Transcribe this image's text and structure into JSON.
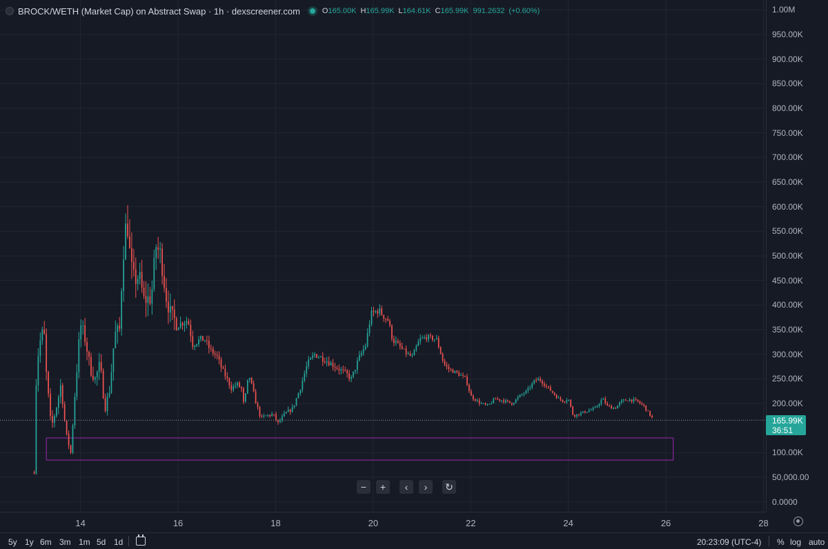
{
  "header": {
    "title": "BROCK/WETH (Market Cap) on Abstract Swap · 1h · dexscreener.com",
    "ohlc": [
      {
        "key": "O",
        "value": "165.00K"
      },
      {
        "key": "H",
        "value": "165.99K"
      },
      {
        "key": "L",
        "value": "164.61K"
      },
      {
        "key": "C",
        "value": "165.99K"
      }
    ],
    "volume": "991.2632",
    "change": "(+0.60%)"
  },
  "price_tag": {
    "price": "165.99K",
    "countdown": "36:51"
  },
  "nav_controls": [
    "−",
    "+",
    "‹",
    "›",
    "↻"
  ],
  "bottom_bar": {
    "ranges": [
      "5y",
      "1y",
      "6m",
      "3m",
      "1m",
      "5d",
      "1d"
    ],
    "clock": "20:23:09 (UTC-4)",
    "options": [
      "%",
      "log",
      "auto"
    ]
  },
  "colors": {
    "background": "#161a25",
    "up": "#26a69a",
    "down": "#ef5350",
    "zone": "#9c27b0",
    "grid": "#232632"
  },
  "chart_data": {
    "type": "candlestick",
    "title": "BROCK/WETH (Market Cap) on Abstract Swap · 1h · dexscreener.com",
    "x_unit": "day of month",
    "y_unit": "market cap (USD)",
    "xlim": [
      12.35,
      28.05
    ],
    "ylim": [
      -20000,
      1020000
    ],
    "x_ticks": [
      {
        "x": 14,
        "label": "14"
      },
      {
        "x": 16,
        "label": "16"
      },
      {
        "x": 18,
        "label": "18"
      },
      {
        "x": 20,
        "label": "20"
      },
      {
        "x": 22,
        "label": "22"
      },
      {
        "x": 24,
        "label": "24"
      },
      {
        "x": 26,
        "label": "26"
      },
      {
        "x": 28,
        "label": "28"
      }
    ],
    "y_ticks": [
      {
        "y": 1000000,
        "label": "1.00M"
      },
      {
        "y": 950000,
        "label": "950.00K"
      },
      {
        "y": 900000,
        "label": "900.00K"
      },
      {
        "y": 850000,
        "label": "850.00K"
      },
      {
        "y": 800000,
        "label": "800.00K"
      },
      {
        "y": 750000,
        "label": "750.00K"
      },
      {
        "y": 700000,
        "label": "700.00K"
      },
      {
        "y": 650000,
        "label": "650.00K"
      },
      {
        "y": 600000,
        "label": "600.00K"
      },
      {
        "y": 550000,
        "label": "550.00K"
      },
      {
        "y": 500000,
        "label": "500.00K"
      },
      {
        "y": 450000,
        "label": "450.00K"
      },
      {
        "y": 400000,
        "label": "400.00K"
      },
      {
        "y": 350000,
        "label": "350.00K"
      },
      {
        "y": 300000,
        "label": "300.00K"
      },
      {
        "y": 250000,
        "label": "250.00K"
      },
      {
        "y": 200000,
        "label": "200.00K"
      },
      {
        "y": 100000,
        "label": "100.00K"
      },
      {
        "y": 50000,
        "label": "50,000.00"
      },
      {
        "y": 0,
        "label": "0.0000"
      }
    ],
    "grid": true,
    "last_price": 165990,
    "zone": {
      "x0": 13.3,
      "x1": 26.15,
      "y0": 85000,
      "y1": 130000
    },
    "close_path": [
      [
        13.05,
        60000
      ],
      [
        13.1,
        280000
      ],
      [
        13.18,
        330000
      ],
      [
        13.25,
        350000
      ],
      [
        13.3,
        260000
      ],
      [
        13.4,
        150000
      ],
      [
        13.5,
        190000
      ],
      [
        13.6,
        240000
      ],
      [
        13.7,
        140000
      ],
      [
        13.8,
        100000
      ],
      [
        13.9,
        240000
      ],
      [
        14.0,
        360000
      ],
      [
        14.1,
        330000
      ],
      [
        14.2,
        270000
      ],
      [
        14.3,
        250000
      ],
      [
        14.4,
        280000
      ],
      [
        14.5,
        190000
      ],
      [
        14.6,
        230000
      ],
      [
        14.7,
        340000
      ],
      [
        14.8,
        350000
      ],
      [
        14.87,
        500000
      ],
      [
        14.95,
        580000
      ],
      [
        15.03,
        480000
      ],
      [
        15.1,
        450000
      ],
      [
        15.2,
        460000
      ],
      [
        15.3,
        410000
      ],
      [
        15.45,
        415000
      ],
      [
        15.55,
        520000
      ],
      [
        15.65,
        500000
      ],
      [
        15.75,
        420000
      ],
      [
        15.85,
        380000
      ],
      [
        16.0,
        360000
      ],
      [
        16.1,
        365000
      ],
      [
        16.2,
        370000
      ],
      [
        16.3,
        320000
      ],
      [
        16.45,
        330000
      ],
      [
        16.55,
        330000
      ],
      [
        16.65,
        310000
      ],
      [
        16.8,
        295000
      ],
      [
        16.9,
        270000
      ],
      [
        17.0,
        250000
      ],
      [
        17.1,
        230000
      ],
      [
        17.2,
        240000
      ],
      [
        17.3,
        230000
      ],
      [
        17.35,
        195000
      ],
      [
        17.45,
        260000
      ],
      [
        17.6,
        200000
      ],
      [
        17.7,
        170000
      ],
      [
        17.8,
        175000
      ],
      [
        17.95,
        178000
      ],
      [
        18.05,
        160000
      ],
      [
        18.2,
        180000
      ],
      [
        18.35,
        190000
      ],
      [
        18.5,
        230000
      ],
      [
        18.65,
        280000
      ],
      [
        18.8,
        300000
      ],
      [
        19.0,
        290000
      ],
      [
        19.15,
        280000
      ],
      [
        19.3,
        270000
      ],
      [
        19.45,
        260000
      ],
      [
        19.55,
        250000
      ],
      [
        19.7,
        290000
      ],
      [
        19.85,
        320000
      ],
      [
        19.95,
        380000
      ],
      [
        20.1,
        390000
      ],
      [
        20.2,
        380000
      ],
      [
        20.3,
        370000
      ],
      [
        20.4,
        330000
      ],
      [
        20.5,
        320000
      ],
      [
        20.6,
        310000
      ],
      [
        20.7,
        300000
      ],
      [
        20.8,
        295000
      ],
      [
        20.95,
        330000
      ],
      [
        21.1,
        335000
      ],
      [
        21.3,
        330000
      ],
      [
        21.45,
        280000
      ],
      [
        21.55,
        270000
      ],
      [
        21.75,
        260000
      ],
      [
        21.9,
        250000
      ],
      [
        22.0,
        215000
      ],
      [
        22.2,
        200000
      ],
      [
        22.35,
        195000
      ],
      [
        22.5,
        210000
      ],
      [
        22.7,
        205000
      ],
      [
        22.85,
        200000
      ],
      [
        23.0,
        215000
      ],
      [
        23.15,
        225000
      ],
      [
        23.3,
        245000
      ],
      [
        23.4,
        250000
      ],
      [
        23.5,
        240000
      ],
      [
        23.65,
        225000
      ],
      [
        23.8,
        210000
      ],
      [
        23.9,
        205000
      ],
      [
        24.0,
        210000
      ],
      [
        24.1,
        175000
      ],
      [
        24.25,
        180000
      ],
      [
        24.4,
        185000
      ],
      [
        24.55,
        190000
      ],
      [
        24.7,
        210000
      ],
      [
        24.8,
        195000
      ],
      [
        24.95,
        190000
      ],
      [
        25.1,
        205000
      ],
      [
        25.25,
        208000
      ],
      [
        25.4,
        205000
      ],
      [
        25.55,
        195000
      ],
      [
        25.65,
        180000
      ],
      [
        25.75,
        166000
      ]
    ]
  }
}
